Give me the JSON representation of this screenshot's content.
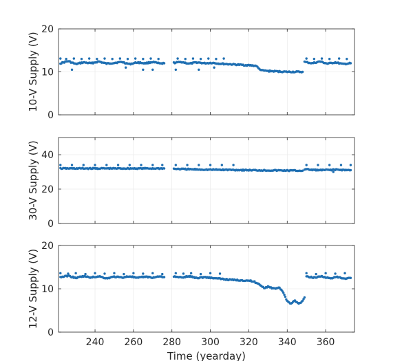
{
  "colors": {
    "series": "#1f6fb2",
    "axes": "#262626",
    "grid": "#e6e6e6"
  },
  "chart_data": [
    {
      "type": "scatter",
      "ylabel": "10-V Supply (V)",
      "xlabel": "",
      "xlim": [
        221,
        375
      ],
      "ylim": [
        0,
        20
      ],
      "xticks": [
        240,
        260,
        280,
        300,
        320,
        340,
        360
      ],
      "yticks": [
        0,
        10,
        20
      ],
      "grid": true,
      "series": [
        {
          "segments": [
            {
              "x": [
                222,
                226,
                230,
                234,
                238,
                242,
                246,
                250,
                254,
                258,
                262,
                266,
                270,
                274,
                276
              ],
              "y": [
                12.0,
                12.5,
                11.8,
                12.2,
                12.0,
                12.4,
                11.9,
                12.1,
                12.3,
                11.8,
                12.2,
                12.0,
                12.3,
                11.9,
                12.0
              ]
            },
            {
              "x": [
                281,
                285,
                289,
                293,
                297,
                301,
                305,
                309,
                313,
                317,
                321,
                324,
                325,
                327,
                330,
                335,
                340,
                345,
                348
              ],
              "y": [
                12.1,
                12.3,
                11.9,
                12.2,
                12.0,
                12.1,
                11.9,
                11.8,
                11.7,
                11.6,
                11.5,
                11.4,
                10.8,
                10.3,
                10.2,
                10.1,
                10.0,
                10.0,
                10.0
              ]
            },
            {
              "x": [
                349,
                353,
                357,
                361,
                365,
                369,
                373
              ],
              "y": [
                12.3,
                12.0,
                12.4,
                11.9,
                12.2,
                11.8,
                12.0
              ]
            }
          ],
          "scatter": [
            {
              "x": [
                222,
                225,
                229,
                233,
                237,
                241,
                245,
                249,
                253,
                257,
                261,
                265,
                269,
                273
              ],
              "y": [
                13.1,
                13.0,
                13.1,
                13.0,
                13.1,
                13.0,
                13.1,
                13.0,
                13.1,
                13.0,
                13.1,
                13.0,
                13.1,
                13.0
              ]
            },
            {
              "x": [
                228,
                256,
                265,
                270,
                282,
                294,
                302
              ],
              "y": [
                10.5,
                11.0,
                10.5,
                10.5,
                10.5,
                10.5,
                11.0
              ]
            },
            {
              "x": [
                283,
                287,
                291,
                295,
                299,
                303,
                307
              ],
              "y": [
                13.1,
                13.0,
                13.1,
                13.0,
                13.1,
                13.0,
                13.1
              ]
            },
            {
              "x": [
                350,
                354,
                358,
                362,
                367,
                371
              ],
              "y": [
                13.1,
                13.0,
                13.1,
                13.0,
                13.1,
                13.0
              ]
            }
          ]
        }
      ]
    },
    {
      "type": "scatter",
      "ylabel": "30-V Supply (V)",
      "xlabel": "",
      "xlim": [
        221,
        375
      ],
      "ylim": [
        0,
        50
      ],
      "xticks": [
        240,
        260,
        280,
        300,
        320,
        340,
        360
      ],
      "yticks": [
        0,
        20,
        40
      ],
      "grid": true,
      "series": [
        {
          "segments": [
            {
              "x": [
                222,
                230,
                240,
                250,
                260,
                270,
                276
              ],
              "y": [
                32.0,
                32.0,
                32.0,
                32.0,
                32.0,
                32.0,
                32.0
              ]
            },
            {
              "x": [
                281,
                290,
                300,
                310,
                320,
                330,
                340,
                348
              ],
              "y": [
                31.8,
                31.5,
                31.3,
                31.2,
                31.0,
                30.9,
                30.8,
                30.7
              ]
            },
            {
              "x": [
                349,
                357,
                365,
                373
              ],
              "y": [
                31.5,
                31.0,
                31.3,
                31.0
              ]
            }
          ],
          "scatter": [
            {
              "x": [
                222,
                228,
                234,
                240,
                246,
                252,
                258,
                264,
                270,
                275
              ],
              "y": [
                34.0,
                34.0,
                34.0,
                34.0,
                34.0,
                34.0,
                34.0,
                34.0,
                34.0,
                34.0
              ]
            },
            {
              "x": [
                282,
                288,
                294,
                300,
                306,
                312
              ],
              "y": [
                34.0,
                34.0,
                34.0,
                34.0,
                34.0,
                34.0
              ]
            },
            {
              "x": [
                350,
                356,
                362,
                368,
                373
              ],
              "y": [
                34.0,
                34.0,
                34.0,
                34.0,
                34.0
              ]
            },
            {
              "x": [
                353,
                364
              ],
              "y": [
                31.0,
                30.0
              ]
            }
          ]
        }
      ]
    },
    {
      "type": "scatter",
      "ylabel": "12-V Supply (V)",
      "xlabel": "Time (yearday)",
      "xlim": [
        221,
        375
      ],
      "ylim": [
        0,
        20
      ],
      "xticks": [
        240,
        260,
        280,
        300,
        320,
        340,
        360
      ],
      "yticks": [
        0,
        10,
        20
      ],
      "grid": true,
      "series": [
        {
          "segments": [
            {
              "x": [
                222,
                226,
                230,
                234,
                238,
                242,
                246,
                250,
                254,
                258,
                262,
                266,
                270,
                274,
                276
              ],
              "y": [
                12.7,
                13.0,
                12.5,
                12.9,
                12.6,
                12.9,
                12.4,
                12.8,
                12.6,
                12.9,
                12.5,
                12.8,
                12.6,
                12.9,
                12.7
              ]
            },
            {
              "x": [
                281,
                285,
                289,
                293,
                297,
                301,
                305,
                310,
                315,
                320,
                323,
                326,
                328,
                330,
                333,
                336,
                338,
                340,
                342,
                344,
                346,
                348,
                349
              ],
              "y": [
                12.8,
                12.6,
                12.9,
                12.5,
                12.7,
                12.5,
                12.3,
                12.1,
                12.0,
                11.9,
                11.6,
                10.9,
                10.2,
                10.5,
                10.0,
                10.3,
                9.0,
                7.2,
                6.6,
                7.3,
                6.5,
                7.2,
                8.0
              ]
            },
            {
              "x": [
                350,
                354,
                358,
                362,
                366,
                370,
                373
              ],
              "y": [
                12.8,
                12.6,
                12.9,
                12.4,
                12.7,
                12.3,
                12.5
              ]
            }
          ],
          "scatter": [
            {
              "x": [
                222,
                226,
                230,
                235,
                240,
                245,
                250,
                255,
                260,
                265,
                270,
                275
              ],
              "y": [
                13.6,
                13.5,
                13.6,
                13.4,
                13.6,
                13.5,
                13.6,
                13.4,
                13.6,
                13.5,
                13.6,
                13.4
              ]
            },
            {
              "x": [
                282,
                286,
                290,
                295,
                300,
                305
              ],
              "y": [
                13.6,
                13.5,
                13.6,
                13.4,
                13.6,
                13.5
              ]
            },
            {
              "x": [
                350,
                355,
                360,
                365,
                370
              ],
              "y": [
                13.6,
                13.4,
                13.6,
                13.5,
                13.6
              ]
            }
          ]
        }
      ]
    }
  ]
}
